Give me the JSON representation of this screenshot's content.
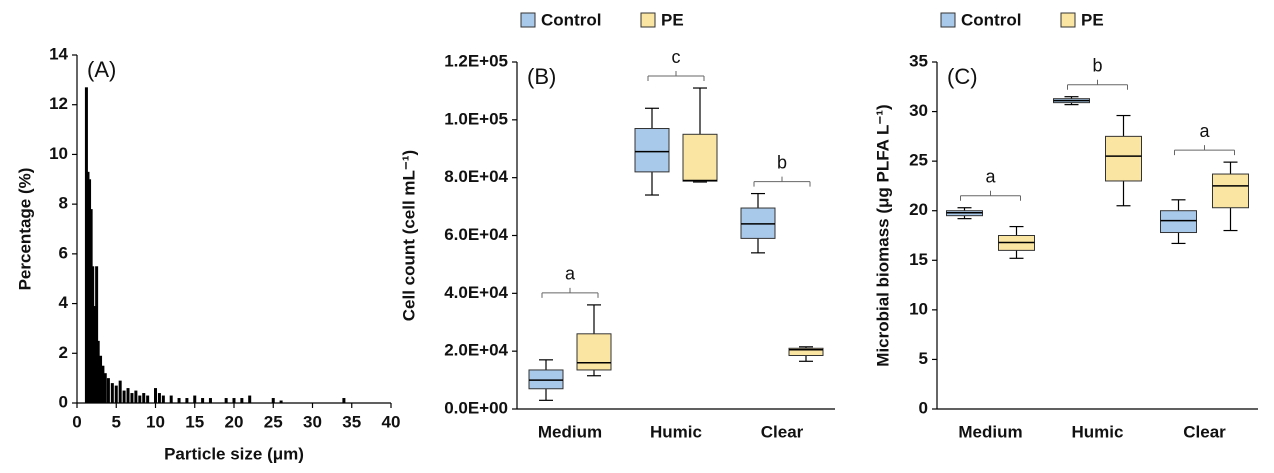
{
  "chart_data": [
    {
      "type": "bar",
      "panel_label": "(A)",
      "x_label": "Particle size (μm)",
      "y_label": "Percentage (%)",
      "color": "#000000",
      "x": [
        1.2,
        1.4,
        1.6,
        1.8,
        2.0,
        2.2,
        2.5,
        2.7,
        3.0,
        3.3,
        3.6,
        4.0,
        4.5,
        5.0,
        5.5,
        6.0,
        6.5,
        7.0,
        7.5,
        8.0,
        8.5,
        9.0,
        10.0,
        10.5,
        11.0,
        12.0,
        13.0,
        14.0,
        15.0,
        16.0,
        17.0,
        19.0,
        20.0,
        21.0,
        22.0,
        25.0,
        26.0,
        34.0
      ],
      "values": [
        12.7,
        9.3,
        9.0,
        7.8,
        5.5,
        3.9,
        5.5,
        2.5,
        1.9,
        1.5,
        1.2,
        1.0,
        0.8,
        0.7,
        0.9,
        0.5,
        0.6,
        0.4,
        0.5,
        0.3,
        0.4,
        0.3,
        0.6,
        0.4,
        0.3,
        0.3,
        0.2,
        0.2,
        0.3,
        0.2,
        0.2,
        0.2,
        0.2,
        0.2,
        0.3,
        0.2,
        0.1,
        0.2
      ],
      "xlim": [
        0,
        40
      ],
      "xticks": [
        0,
        5,
        10,
        15,
        20,
        25,
        30,
        35,
        40
      ],
      "ylim": [
        0,
        14
      ],
      "yticks": [
        0,
        2,
        4,
        6,
        8,
        10,
        12,
        14
      ]
    },
    {
      "type": "box",
      "panel_label": "(B)",
      "y_label": "Cell count (cell mL⁻¹)",
      "categories": [
        "Medium",
        "Humic",
        "Clear"
      ],
      "group_letters": [
        "a",
        "c",
        "b"
      ],
      "ylim": [
        0,
        120000
      ],
      "yticks": [
        {
          "value": 0,
          "label": "0.0E+00"
        },
        {
          "value": 20000,
          "label": "2.0E+04"
        },
        {
          "value": 40000,
          "label": "4.0E+04"
        },
        {
          "value": 60000,
          "label": "6.0E+04"
        },
        {
          "value": 80000,
          "label": "8.0E+04"
        },
        {
          "value": 100000,
          "label": "1.0E+05"
        },
        {
          "value": 120000,
          "label": "1.2E+05"
        }
      ],
      "series": [
        {
          "name": "Control",
          "color": "#a9c9ea",
          "values": [
            {
              "min": 3000,
              "q1": 7000,
              "median": 10000,
              "q3": 13500,
              "max": 17000
            },
            {
              "min": 74000,
              "q1": 82000,
              "median": 89000,
              "q3": 97000,
              "max": 104000
            },
            {
              "min": 54000,
              "q1": 59000,
              "median": 64000,
              "q3": 69500,
              "max": 74500
            }
          ]
        },
        {
          "name": "PE",
          "color": "#fbe5a2",
          "values": [
            {
              "min": 11500,
              "q1": 13500,
              "median": 16000,
              "q3": 26000,
              "max": 36000
            },
            {
              "min": 78500,
              "q1": 78800,
              "median": 79000,
              "q3": 95000,
              "max": 111000
            },
            {
              "min": 16500,
              "q1": 18500,
              "median": 20500,
              "q3": 21000,
              "max": 21500
            }
          ]
        }
      ]
    },
    {
      "type": "box",
      "panel_label": "(C)",
      "y_label": "Microbial  biomass (μg PLFA L⁻¹)",
      "categories": [
        "Medium",
        "Humic",
        "Clear"
      ],
      "group_letters": [
        "a",
        "b",
        "a"
      ],
      "ylim": [
        0,
        35
      ],
      "yticks": [
        0,
        5,
        10,
        15,
        20,
        25,
        30,
        35
      ],
      "series": [
        {
          "name": "Control",
          "color": "#a9c9ea",
          "values": [
            {
              "min": 19.2,
              "q1": 19.5,
              "median": 19.8,
              "q3": 20.0,
              "max": 20.3
            },
            {
              "min": 30.7,
              "q1": 30.9,
              "median": 31.1,
              "q3": 31.3,
              "max": 31.5
            },
            {
              "min": 16.7,
              "q1": 17.8,
              "median": 19.0,
              "q3": 20.0,
              "max": 21.1
            }
          ]
        },
        {
          "name": "PE",
          "color": "#fbe5a2",
          "values": [
            {
              "min": 15.2,
              "q1": 16.0,
              "median": 16.8,
              "q3": 17.5,
              "max": 18.4
            },
            {
              "min": 20.5,
              "q1": 23.0,
              "median": 25.5,
              "q3": 27.5,
              "max": 29.6
            },
            {
              "min": 18.0,
              "q1": 20.3,
              "median": 22.5,
              "q3": 23.7,
              "max": 24.9
            }
          ]
        }
      ]
    }
  ]
}
